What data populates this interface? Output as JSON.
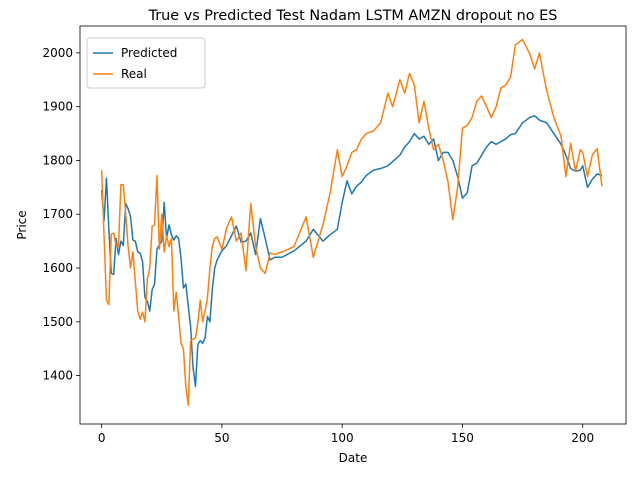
{
  "chart_data": {
    "type": "line",
    "title": "True vs Predicted Test  Nadam LSTM AMZN dropout no ES",
    "xlabel": "Date",
    "ylabel": "Price",
    "xlim": [
      -9,
      218
    ],
    "ylim": [
      1310,
      2050
    ],
    "xticks": [
      0,
      50,
      100,
      150,
      200
    ],
    "yticks": [
      1400,
      1500,
      1600,
      1700,
      1800,
      1900,
      2000
    ],
    "grid": false,
    "legend_position": "top-left",
    "series": [
      {
        "name": "Predicted",
        "color": "#1f77b4",
        "x": [
          0,
          1,
          2,
          3,
          4,
          5,
          6,
          7,
          8,
          9,
          10,
          11,
          12,
          13,
          14,
          15,
          16,
          17,
          18,
          19,
          20,
          21,
          22,
          23,
          24,
          25,
          26,
          27,
          28,
          29,
          30,
          31,
          32,
          33,
          34,
          35,
          36,
          37,
          38,
          39,
          40,
          41,
          42,
          43,
          44,
          45,
          46,
          47,
          48,
          50,
          52,
          54,
          56,
          58,
          60,
          62,
          64,
          66,
          68,
          70,
          72,
          75,
          80,
          85,
          88,
          92,
          95,
          98,
          100,
          102,
          104,
          106,
          108,
          110,
          113,
          116,
          119,
          121,
          124,
          126,
          128,
          130,
          132,
          134,
          136,
          138,
          140,
          142,
          144,
          146,
          148,
          150,
          152,
          154,
          156,
          158,
          160,
          162,
          164,
          166,
          168,
          170,
          172,
          175,
          178,
          180,
          182,
          185,
          188,
          191,
          193,
          195,
          197,
          199,
          200,
          202,
          204,
          206,
          208
        ],
        "values": [
          1745,
          1688,
          1767,
          1672,
          1590,
          1588,
          1655,
          1625,
          1650,
          1642,
          1720,
          1710,
          1696,
          1652,
          1650,
          1630,
          1628,
          1612,
          1545,
          1538,
          1520,
          1560,
          1570,
          1635,
          1643,
          1650,
          1722,
          1655,
          1680,
          1662,
          1652,
          1660,
          1655,
          1618,
          1563,
          1570,
          1530,
          1490,
          1415,
          1380,
          1458,
          1465,
          1460,
          1470,
          1510,
          1500,
          1560,
          1600,
          1615,
          1632,
          1642,
          1660,
          1678,
          1648,
          1650,
          1665,
          1625,
          1692,
          1655,
          1615,
          1620,
          1620,
          1632,
          1650,
          1672,
          1650,
          1662,
          1672,
          1722,
          1762,
          1738,
          1752,
          1760,
          1772,
          1782,
          1785,
          1790,
          1798,
          1810,
          1825,
          1835,
          1850,
          1840,
          1845,
          1830,
          1840,
          1800,
          1815,
          1815,
          1800,
          1770,
          1730,
          1740,
          1790,
          1795,
          1810,
          1825,
          1835,
          1830,
          1835,
          1840,
          1848,
          1850,
          1870,
          1880,
          1883,
          1875,
          1870,
          1850,
          1830,
          1810,
          1785,
          1780,
          1782,
          1790,
          1750,
          1765,
          1775,
          1772
        ]
      },
      {
        "name": "Real",
        "color": "#ff7f0e",
        "x": [
          0,
          1,
          2,
          3,
          4,
          5,
          6,
          7,
          8,
          9,
          10,
          11,
          12,
          13,
          14,
          15,
          16,
          17,
          18,
          19,
          20,
          21,
          22,
          23,
          24,
          25,
          26,
          27,
          28,
          29,
          30,
          31,
          32,
          33,
          34,
          35,
          36,
          37,
          38,
          39,
          40,
          41,
          42,
          43,
          44,
          45,
          46,
          47,
          48,
          50,
          52,
          54,
          56,
          58,
          60,
          62,
          64,
          66,
          68,
          70,
          72,
          75,
          80,
          85,
          88,
          92,
          95,
          98,
          100,
          102,
          104,
          106,
          108,
          110,
          113,
          116,
          119,
          121,
          124,
          126,
          128,
          130,
          132,
          134,
          136,
          138,
          140,
          142,
          144,
          146,
          148,
          150,
          152,
          154,
          156,
          158,
          160,
          162,
          164,
          166,
          168,
          170,
          172,
          175,
          178,
          180,
          182,
          185,
          188,
          191,
          193,
          195,
          197,
          199,
          200,
          202,
          204,
          206,
          208
        ],
        "values": [
          1782,
          1660,
          1540,
          1532,
          1663,
          1665,
          1642,
          1640,
          1755,
          1755,
          1700,
          1640,
          1600,
          1630,
          1575,
          1520,
          1505,
          1518,
          1500,
          1580,
          1600,
          1678,
          1680,
          1772,
          1635,
          1700,
          1630,
          1660,
          1640,
          1655,
          1520,
          1555,
          1510,
          1460,
          1450,
          1380,
          1345,
          1465,
          1468,
          1470,
          1498,
          1540,
          1500,
          1520,
          1545,
          1600,
          1640,
          1655,
          1658,
          1635,
          1675,
          1695,
          1650,
          1665,
          1595,
          1720,
          1640,
          1600,
          1590,
          1628,
          1625,
          1630,
          1640,
          1695,
          1620,
          1680,
          1740,
          1820,
          1770,
          1790,
          1815,
          1820,
          1840,
          1850,
          1855,
          1870,
          1925,
          1900,
          1950,
          1925,
          1962,
          1940,
          1870,
          1910,
          1860,
          1820,
          1830,
          1800,
          1760,
          1690,
          1750,
          1860,
          1865,
          1880,
          1910,
          1920,
          1900,
          1880,
          1900,
          1935,
          1940,
          1955,
          2015,
          2025,
          1998,
          1970,
          2000,
          1930,
          1880,
          1845,
          1770,
          1832,
          1780,
          1820,
          1815,
          1770,
          1810,
          1822,
          1752
        ]
      }
    ]
  }
}
